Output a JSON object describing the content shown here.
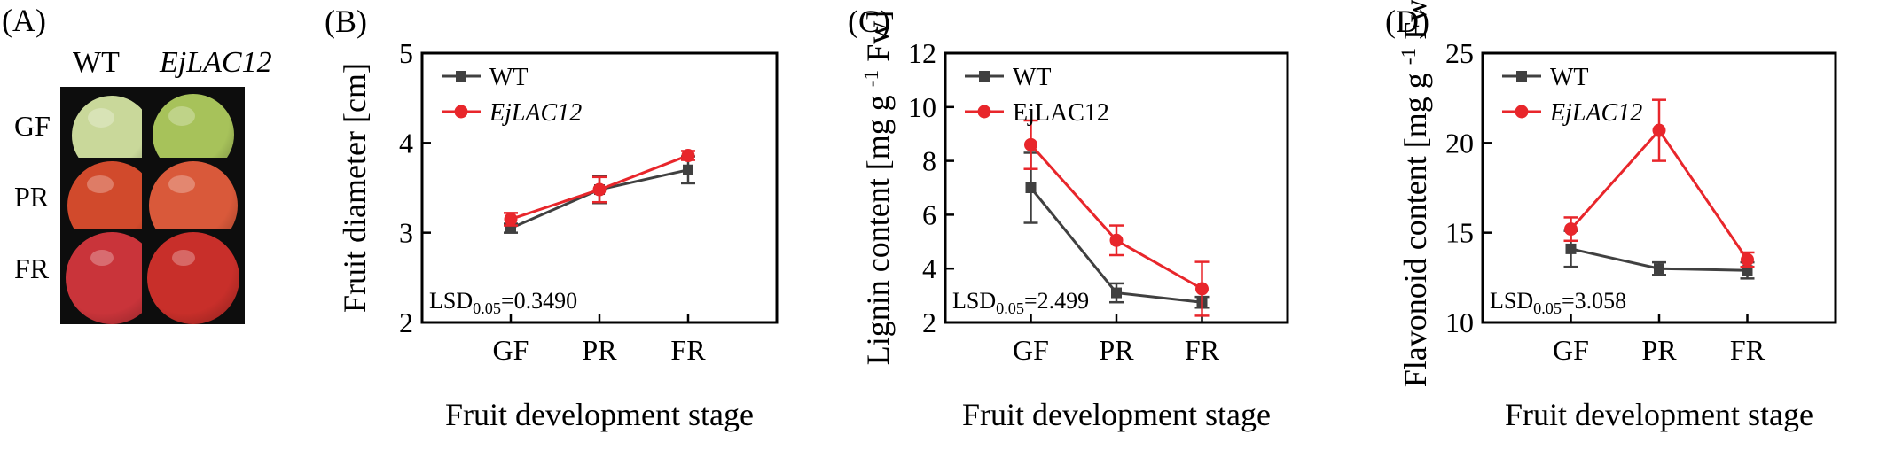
{
  "panels": {
    "a": {
      "label": "(A)",
      "columns": [
        "WT",
        "EjLAC12"
      ],
      "rows": [
        {
          "stage": "GF",
          "colors": [
            "#c9d89a",
            "#a7c25a"
          ]
        },
        {
          "stage": "PR",
          "colors": [
            "#d14a2c",
            "#d9593a"
          ]
        },
        {
          "stage": "FR",
          "colors": [
            "#c9343a",
            "#c82f2a"
          ]
        }
      ]
    }
  },
  "chart_data": [
    {
      "type": "line",
      "panel": "(B)",
      "categories": [
        "GF",
        "PR",
        "FR"
      ],
      "series": [
        {
          "name": "WT",
          "values": [
            3.05,
            3.48,
            3.7
          ],
          "errors": [
            0.05,
            0.15,
            0.15
          ],
          "color": "#404040",
          "marker": "square"
        },
        {
          "name": "EjLAC12",
          "values": [
            3.15,
            3.48,
            3.86
          ],
          "errors": [
            0.07,
            0.14,
            0.05
          ],
          "color": "#e8262b",
          "marker": "circle"
        }
      ],
      "xlabel": "Fruit development stage",
      "ylabel": "Fruit diameter [cm]",
      "ylim": [
        2,
        5
      ],
      "yticks": [
        "2",
        "3",
        "4",
        "5"
      ],
      "annotation": "LSD0.05=0.3490",
      "legend": "top-left"
    },
    {
      "type": "line",
      "panel": "(C)",
      "categories": [
        "GF",
        "PR",
        "FR"
      ],
      "series": [
        {
          "name": "WT",
          "values": [
            7.0,
            3.1,
            2.75
          ],
          "errors": [
            1.3,
            0.35,
            0.2
          ],
          "color": "#404040",
          "marker": "square"
        },
        {
          "name": "EjLAC12",
          "values": [
            8.6,
            5.05,
            3.25
          ],
          "errors": [
            0.9,
            0.55,
            1.0
          ],
          "color": "#e8262b",
          "marker": "circle"
        }
      ],
      "xlabel": "Fruit development stage",
      "ylabel": "Lignin content [mg g-1 Fw]",
      "ylim": [
        2,
        12
      ],
      "yticks": [
        "2",
        "4",
        "6",
        "8",
        "10",
        "12"
      ],
      "annotation": "LSD0.05=2.499",
      "legend": "top-left"
    },
    {
      "type": "line",
      "panel": "(D)",
      "categories": [
        "GF",
        "PR",
        "FR"
      ],
      "series": [
        {
          "name": "WT",
          "values": [
            14.1,
            13.0,
            12.9
          ],
          "errors": [
            1.0,
            0.35,
            0.45
          ],
          "color": "#404040",
          "marker": "square"
        },
        {
          "name": "EjLAC12",
          "values": [
            15.2,
            20.7,
            13.5
          ],
          "errors": [
            0.65,
            1.7,
            0.4
          ],
          "color": "#e8262b",
          "marker": "circle"
        }
      ],
      "xlabel": "Fruit development stage",
      "ylabel": "Flavonoid content [mg g-1 Fw]",
      "ylim": [
        10,
        25
      ],
      "yticks": [
        "10",
        "15",
        "20",
        "25"
      ],
      "annotation": "LSD0.05=3.058",
      "legend": "top-left"
    }
  ]
}
